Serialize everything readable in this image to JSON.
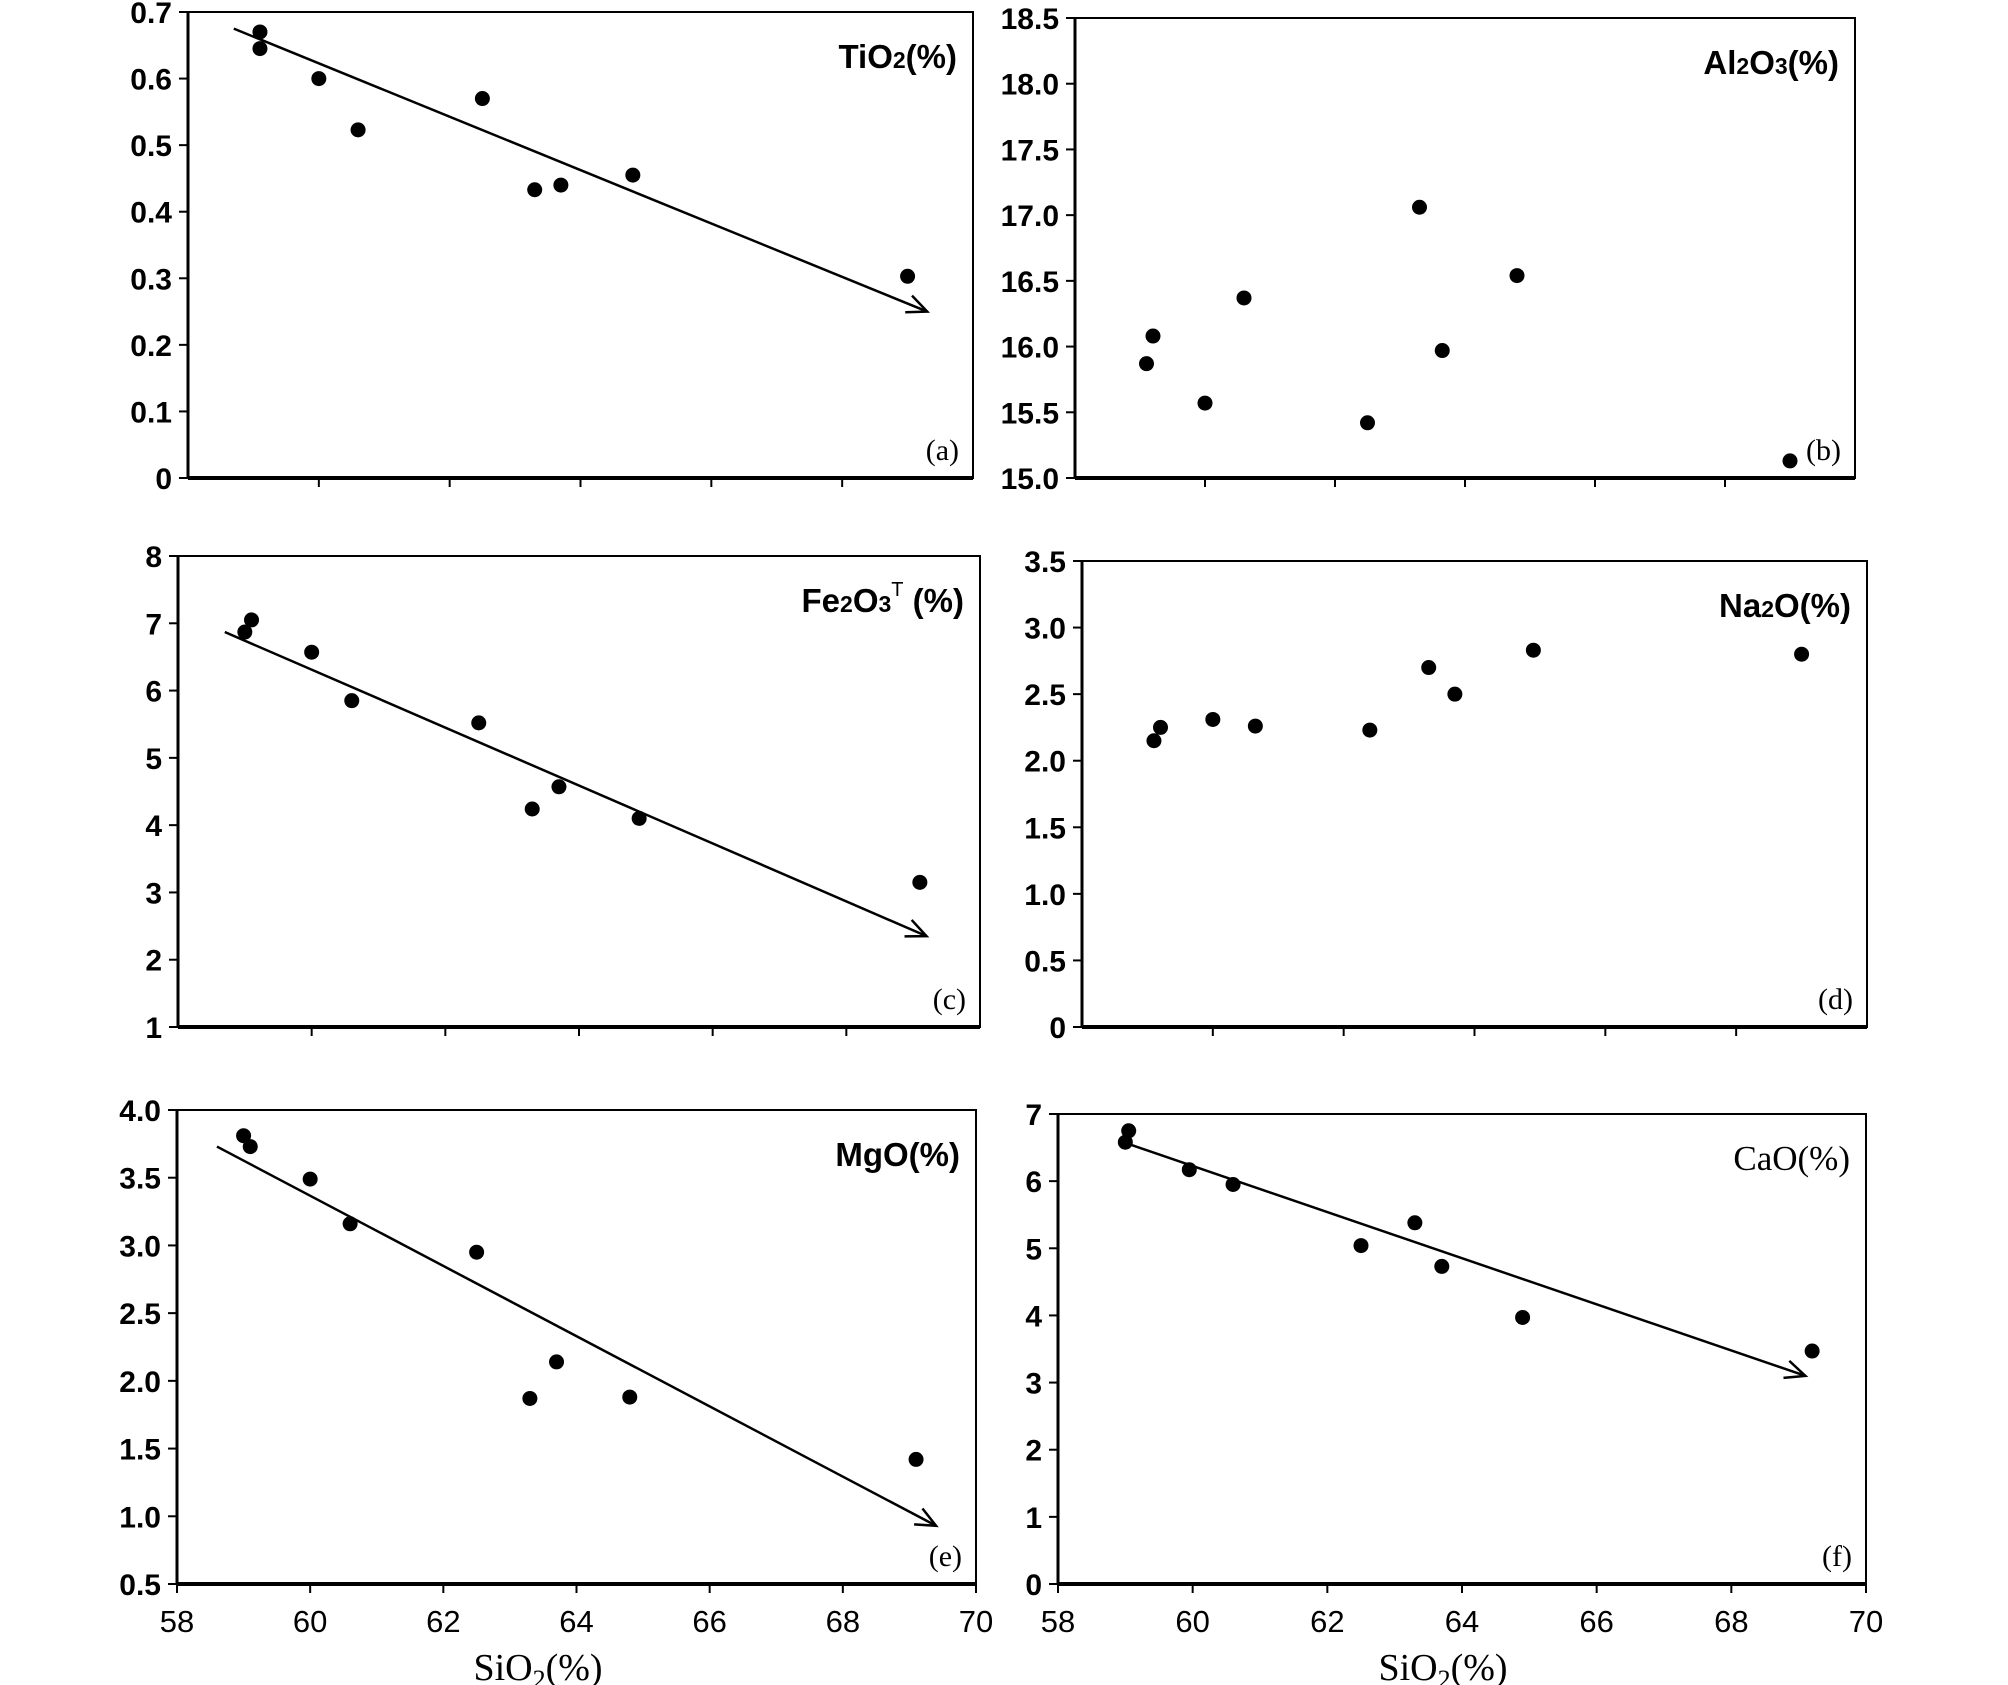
{
  "chart_data": [
    {
      "id": "a",
      "type": "scatter",
      "title_main": "TiO",
      "title_sub": "2",
      "title_sup": "",
      "title_tail": "(%)",
      "tag": "(a)",
      "xlim": [
        58,
        70
      ],
      "ylim": [
        0,
        0.7
      ],
      "y_ticks": [
        0,
        0.1,
        0.2,
        0.3,
        0.4,
        0.5,
        0.6,
        0.7
      ],
      "y_tick_labels": [
        "0",
        "0.1",
        "0.2",
        "0.3",
        "0.4",
        "0.5",
        "0.6",
        "0.7"
      ],
      "x_ticks": [
        60,
        62,
        64,
        66,
        68
      ],
      "points": [
        {
          "x": 59.1,
          "y": 0.67
        },
        {
          "x": 59.1,
          "y": 0.645
        },
        {
          "x": 60.0,
          "y": 0.6
        },
        {
          "x": 60.6,
          "y": 0.523
        },
        {
          "x": 62.5,
          "y": 0.57
        },
        {
          "x": 63.3,
          "y": 0.433
        },
        {
          "x": 63.7,
          "y": 0.44
        },
        {
          "x": 64.8,
          "y": 0.455
        },
        {
          "x": 69.0,
          "y": 0.303
        }
      ],
      "trend": {
        "x1": 58.7,
        "y1": 0.675,
        "x2": 69.3,
        "y2": 0.25
      }
    },
    {
      "id": "b",
      "type": "scatter",
      "title_main": "Al",
      "title_sub": "2",
      "title_mid": "O",
      "title_sub2": "3",
      "title_sup": "",
      "title_tail": "(%)",
      "tag": "(b)",
      "xlim": [
        58,
        70
      ],
      "ylim": [
        15.0,
        18.5
      ],
      "y_ticks": [
        15.0,
        15.5,
        16.0,
        16.5,
        17.0,
        17.5,
        18.0,
        18.5
      ],
      "y_tick_labels": [
        "15.0",
        "15.5",
        "16.0",
        "16.5",
        "17.0",
        "17.5",
        "18.0",
        "18.5"
      ],
      "x_ticks": [
        60,
        62,
        64,
        66,
        68
      ],
      "points": [
        {
          "x": 59.1,
          "y": 15.87
        },
        {
          "x": 59.2,
          "y": 16.08
        },
        {
          "x": 60.0,
          "y": 15.57
        },
        {
          "x": 60.6,
          "y": 16.37
        },
        {
          "x": 62.5,
          "y": 15.42
        },
        {
          "x": 63.3,
          "y": 17.06
        },
        {
          "x": 63.65,
          "y": 15.97
        },
        {
          "x": 64.8,
          "y": 16.54
        },
        {
          "x": 69.0,
          "y": 15.13
        }
      ],
      "trend": null
    },
    {
      "id": "c",
      "type": "scatter",
      "title_main": "Fe",
      "title_sub": "2",
      "title_mid": "O",
      "title_sub2": "3",
      "title_sup": "T",
      "title_tail": " (%)",
      "tag": "(c)",
      "xlim": [
        58,
        70
      ],
      "ylim": [
        1,
        8
      ],
      "y_ticks": [
        1,
        2,
        3,
        4,
        5,
        6,
        7,
        8
      ],
      "y_tick_labels": [
        "1",
        "2",
        "3",
        "4",
        "5",
        "6",
        "7",
        "8"
      ],
      "x_ticks": [
        60,
        62,
        64,
        66,
        68
      ],
      "points": [
        {
          "x": 59.0,
          "y": 6.87
        },
        {
          "x": 59.1,
          "y": 7.05
        },
        {
          "x": 60.0,
          "y": 6.57
        },
        {
          "x": 60.6,
          "y": 5.85
        },
        {
          "x": 62.5,
          "y": 5.52
        },
        {
          "x": 63.3,
          "y": 4.24
        },
        {
          "x": 63.7,
          "y": 4.57
        },
        {
          "x": 64.9,
          "y": 4.1
        },
        {
          "x": 69.1,
          "y": 3.15
        }
      ],
      "trend": {
        "x1": 58.7,
        "y1": 6.87,
        "x2": 69.2,
        "y2": 2.35
      }
    },
    {
      "id": "d",
      "type": "scatter",
      "title_main": "Na",
      "title_sub": "2",
      "title_mid": "O",
      "title_sub2": "",
      "title_sup": "",
      "title_tail": "(%)",
      "tag": "(d)",
      "xlim": [
        58,
        70
      ],
      "ylim": [
        0,
        3.5
      ],
      "y_ticks": [
        0,
        0.5,
        1.0,
        1.5,
        2.0,
        2.5,
        3.0,
        3.5
      ],
      "y_tick_labels": [
        "0",
        "0.5",
        "1.0",
        "1.5",
        "2.0",
        "2.5",
        "3.0",
        "3.5"
      ],
      "x_ticks": [
        60,
        62,
        64,
        66,
        68
      ],
      "points": [
        {
          "x": 59.1,
          "y": 2.15
        },
        {
          "x": 59.2,
          "y": 2.25
        },
        {
          "x": 60.0,
          "y": 2.31
        },
        {
          "x": 60.65,
          "y": 2.26
        },
        {
          "x": 62.4,
          "y": 2.23
        },
        {
          "x": 63.3,
          "y": 2.7
        },
        {
          "x": 63.7,
          "y": 2.5
        },
        {
          "x": 64.9,
          "y": 2.83
        },
        {
          "x": 69.0,
          "y": 2.8
        }
      ],
      "trend": null
    },
    {
      "id": "e",
      "type": "scatter",
      "title_main": "MgO",
      "title_sub": "",
      "title_mid": "",
      "title_sub2": "",
      "title_sup": "",
      "title_tail": "(%)",
      "tag": "(e)",
      "xlim": [
        58,
        70
      ],
      "ylim": [
        0.5,
        4.0
      ],
      "y_ticks": [
        0.5,
        1.0,
        1.5,
        2.0,
        2.5,
        3.0,
        3.5,
        4.0
      ],
      "y_tick_labels": [
        "0.5",
        "1.0",
        "1.5",
        "2.0",
        "2.5",
        "3.0",
        "3.5",
        "4.0"
      ],
      "x_ticks": [
        58,
        60,
        62,
        64,
        66,
        68,
        70
      ],
      "x_tick_labels": [
        "58",
        "60",
        "62",
        "64",
        "66",
        "68",
        "70"
      ],
      "points": [
        {
          "x": 59.0,
          "y": 3.81
        },
        {
          "x": 59.1,
          "y": 3.73
        },
        {
          "x": 60.0,
          "y": 3.49
        },
        {
          "x": 60.6,
          "y": 3.16
        },
        {
          "x": 62.5,
          "y": 2.95
        },
        {
          "x": 63.3,
          "y": 1.87
        },
        {
          "x": 63.7,
          "y": 2.14
        },
        {
          "x": 64.8,
          "y": 1.88
        },
        {
          "x": 69.1,
          "y": 1.42
        }
      ],
      "trend": {
        "x1": 58.6,
        "y1": 3.73,
        "x2": 69.4,
        "y2": 0.93
      }
    },
    {
      "id": "f",
      "type": "scatter",
      "title_plain": "CaO(%)",
      "tag": "(f)",
      "xlim": [
        58,
        70
      ],
      "ylim": [
        0,
        7
      ],
      "y_ticks": [
        0,
        1,
        2,
        3,
        4,
        5,
        6,
        7
      ],
      "y_tick_labels": [
        "0",
        "1",
        "2",
        "3",
        "4",
        "5",
        "6",
        "7"
      ],
      "x_ticks": [
        58,
        60,
        62,
        64,
        66,
        68,
        70
      ],
      "x_tick_labels": [
        "58",
        "60",
        "62",
        "64",
        "66",
        "68",
        "70"
      ],
      "points": [
        {
          "x": 59.0,
          "y": 6.58
        },
        {
          "x": 59.05,
          "y": 6.75
        },
        {
          "x": 59.95,
          "y": 6.17
        },
        {
          "x": 60.6,
          "y": 5.95
        },
        {
          "x": 62.5,
          "y": 5.04
        },
        {
          "x": 63.3,
          "y": 5.38
        },
        {
          "x": 63.7,
          "y": 4.73
        },
        {
          "x": 64.9,
          "y": 3.97
        },
        {
          "x": 69.2,
          "y": 3.47
        }
      ],
      "trend": {
        "x1": 59.0,
        "y1": 6.57,
        "x2": 69.1,
        "y2": 3.1
      }
    }
  ],
  "x_axis_title": {
    "main": "SiO",
    "sub": "2",
    "tail": "(%)"
  }
}
